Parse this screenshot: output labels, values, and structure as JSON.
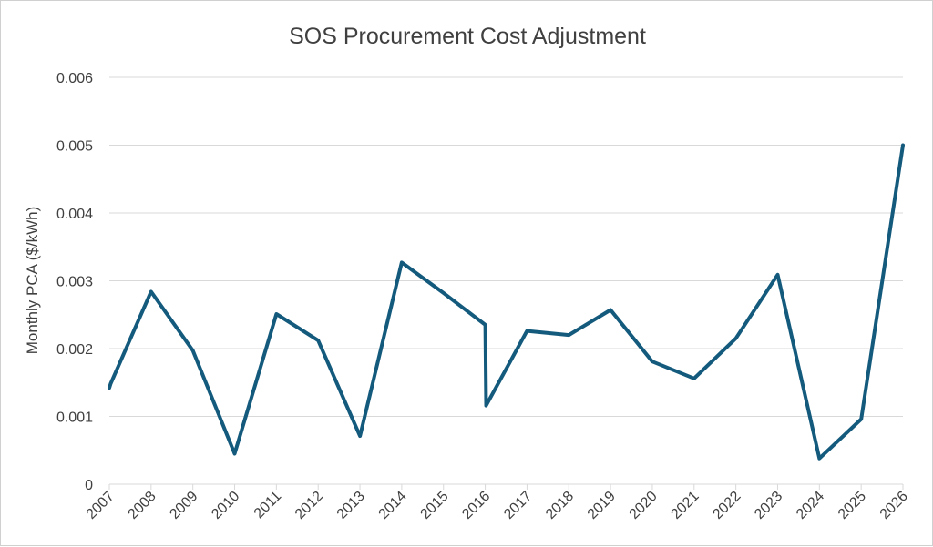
{
  "chart_data": {
    "type": "line",
    "title": "SOS Procurement Cost Adjustment",
    "xlabel": "",
    "ylabel": "Monthly PCA ($/kWh)",
    "x_ticks": [
      "2007",
      "2008",
      "2009",
      "2010",
      "2011",
      "2012",
      "2013",
      "2014",
      "2015",
      "2016",
      "2017",
      "2018",
      "2019",
      "2020",
      "2021",
      "2022",
      "2023",
      "2024",
      "2025",
      "2026"
    ],
    "y_ticks": [
      "0",
      "0.001",
      "0.002",
      "0.003",
      "0.004",
      "0.005",
      "0.006"
    ],
    "xlim": [
      2007,
      2026
    ],
    "ylim": [
      0,
      0.006
    ],
    "grid": true,
    "series": [
      {
        "color": "#145a7d",
        "x": [
          2007,
          2007.03,
          2008,
          2009,
          2010,
          2011,
          2012,
          2013,
          2014,
          2015,
          2016,
          2016.02,
          2017,
          2018,
          2019,
          2020,
          2021,
          2022,
          2023,
          2024,
          2025,
          2026
        ],
        "y": [
          0.00142,
          0.00148,
          0.00284,
          0.00197,
          0.00045,
          0.00251,
          0.00212,
          0.00071,
          0.00327,
          0.00282,
          0.00235,
          0.00116,
          0.00226,
          0.0022,
          0.00257,
          0.00181,
          0.00156,
          0.00215,
          0.00309,
          0.00038,
          0.00096,
          0.005
        ]
      }
    ]
  }
}
